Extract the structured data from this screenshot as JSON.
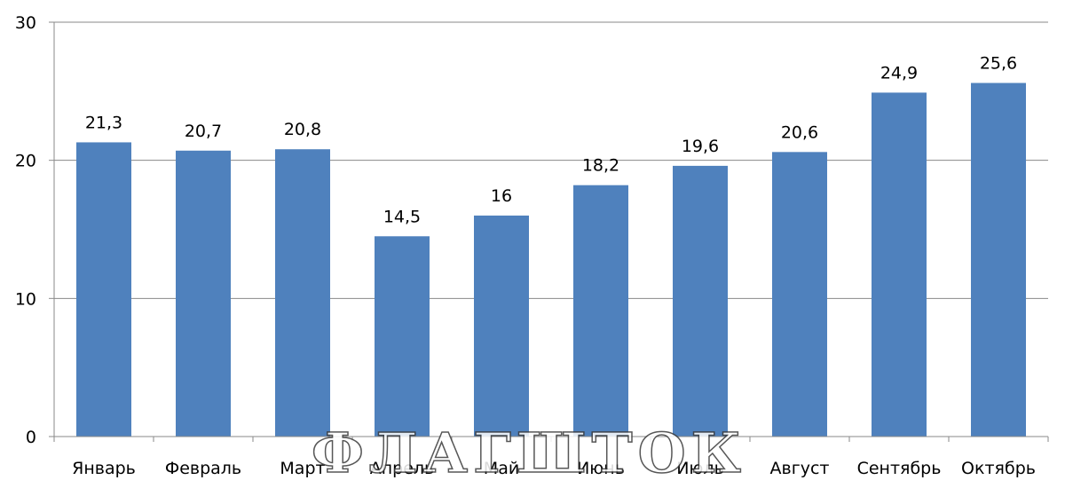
{
  "chart_data": {
    "type": "bar",
    "categories": [
      "Январь",
      "Февраль",
      "Март",
      "Апрель",
      "Май",
      "Июнь",
      "Июль",
      "Август",
      "Сентябрь",
      "Октябрь"
    ],
    "values": [
      21.3,
      20.7,
      20.8,
      14.5,
      16,
      18.2,
      19.6,
      20.6,
      24.9,
      25.6
    ],
    "data_labels": [
      "21,3",
      "20,7",
      "20,8",
      "14,5",
      "16",
      "18,2",
      "19,6",
      "20,6",
      "24,9",
      "25,6"
    ],
    "y_ticks": [
      0,
      10,
      20,
      30
    ],
    "ylim": [
      0,
      30
    ],
    "title": "",
    "xlabel": "",
    "ylabel": "",
    "grid": true,
    "legend": "none",
    "bar_color": "#4F81BD"
  },
  "watermark": {
    "text": "ФЛАГШТОК"
  }
}
